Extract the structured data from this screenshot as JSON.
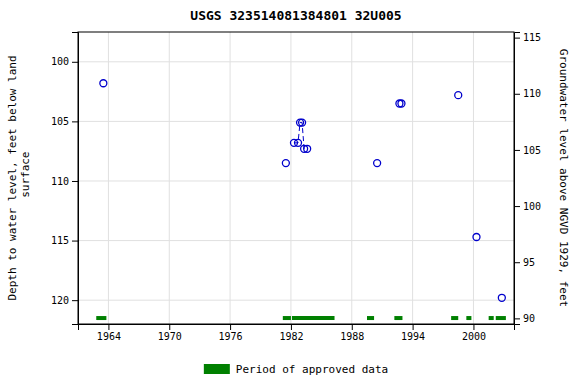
{
  "chart_data": {
    "type": "scatter",
    "title": "USGS 323514081384801 32U005",
    "y_label": "Depth to water level, feet below land\n surface",
    "y2_label": "Groundwater level above NGVD 1929, feet",
    "xlim": [
      1961,
      2004
    ],
    "xticks": [
      1964,
      1970,
      1976,
      1982,
      1988,
      1994,
      2000
    ],
    "ylim": [
      122.0,
      97.5
    ],
    "yticks": [
      100,
      105,
      110,
      115,
      120
    ],
    "y2lim": [
      89.5,
      115.5
    ],
    "y2ticks": [
      90,
      95,
      100,
      105,
      110,
      115
    ],
    "grid": true,
    "legend": "bottom",
    "series": [
      {
        "type": "scatter",
        "marker": "circle",
        "color": "#0000cc",
        "x": [
          1963.5,
          1981.5,
          1982.3,
          1982.7,
          1982.9,
          1983.1,
          1983.3,
          1983.6,
          1990.5,
          1992.7,
          1992.9,
          1998.5,
          2000.3,
          2002.8
        ],
        "values": [
          101.8,
          108.5,
          106.8,
          106.8,
          105.1,
          105.1,
          107.3,
          107.3,
          108.5,
          103.5,
          103.5,
          102.8,
          114.7,
          119.8
        ]
      },
      {
        "type": "line",
        "line_style": "dashed",
        "color": "#0000cc",
        "x": [
          1982.3,
          1982.7,
          1982.9,
          1983.1,
          1983.3,
          1983.6
        ],
        "values": [
          106.8,
          106.8,
          105.1,
          105.1,
          107.3,
          107.3
        ]
      },
      {
        "type": "period",
        "name": "Period of approved data",
        "color": "#008000",
        "start": [
          1962.8,
          1981.2,
          1982.1,
          1989.5,
          1992.2,
          1997.8,
          1999.3,
          2001.5,
          2002.2
        ],
        "end": [
          1963.8,
          1982.0,
          1986.3,
          1990.2,
          1993.0,
          1998.5,
          1999.8,
          2002.0,
          2003.2
        ],
        "y": 121.5
      }
    ]
  }
}
